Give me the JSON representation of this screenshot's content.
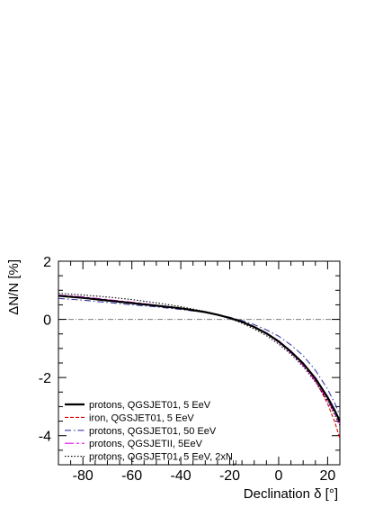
{
  "chart_data": {
    "type": "line",
    "title": "",
    "xlabel": "Declination δ [°]",
    "ylabel": "ΔN/N [%]",
    "xlim": [
      -90,
      25
    ],
    "ylim": [
      -5,
      2
    ],
    "x_ticks": [
      -80,
      -60,
      -40,
      -20,
      0,
      20
    ],
    "x_tick_labels": [
      "-80",
      "-60",
      "-40",
      "-20",
      "0",
      "20"
    ],
    "y_ticks": [
      -4,
      -2,
      0,
      2
    ],
    "y_tick_labels": [
      "-4",
      "-2",
      "0",
      "2"
    ],
    "grid": false,
    "legend_position": "bottom-left",
    "reference_line": {
      "y": 0,
      "color": "#7f7f7f",
      "style": "dash-dot"
    },
    "series": [
      {
        "name": "protons, QGSJET01, 5 EeV",
        "color": "#000000",
        "style": "solid",
        "width": "thick",
        "x": [
          -90,
          -80,
          -70,
          -60,
          -50,
          -40,
          -30,
          -25,
          -20,
          -15,
          -10,
          -5,
          0,
          5,
          10,
          15,
          20,
          23,
          25
        ],
        "y": [
          0.81,
          0.74,
          0.65,
          0.56,
          0.47,
          0.38,
          0.25,
          0.16,
          0.05,
          -0.08,
          -0.26,
          -0.48,
          -0.76,
          -1.11,
          -1.52,
          -2.03,
          -2.68,
          -3.15,
          -3.5
        ]
      },
      {
        "name": "iron, QGSJET01, 5 EeV",
        "color": "#dd0000",
        "style": "dashed",
        "width": "thin",
        "x": [
          -90,
          -80,
          -70,
          -60,
          -50,
          -40,
          -30,
          -25,
          -20,
          -15,
          -10,
          -5,
          0,
          5,
          10,
          15,
          20,
          23,
          25
        ],
        "y": [
          0.8,
          0.73,
          0.64,
          0.55,
          0.47,
          0.38,
          0.25,
          0.16,
          0.05,
          -0.08,
          -0.25,
          -0.47,
          -0.74,
          -1.09,
          -1.52,
          -2.1,
          -2.9,
          -3.55,
          -4.1
        ]
      },
      {
        "name": "protons, QGSJET01, 50 EeV",
        "color": "#3a3aa8",
        "style": "dash-dot",
        "width": "thin",
        "x": [
          -90,
          -80,
          -70,
          -60,
          -50,
          -40,
          -30,
          -25,
          -20,
          -15,
          -10,
          -5,
          0,
          5,
          10,
          15,
          20,
          23,
          25
        ],
        "y": [
          0.72,
          0.66,
          0.58,
          0.5,
          0.43,
          0.34,
          0.24,
          0.16,
          0.07,
          -0.04,
          -0.18,
          -0.36,
          -0.58,
          -0.88,
          -1.25,
          -1.75,
          -2.4,
          -2.9,
          -3.3
        ]
      },
      {
        "name": "protons, QGSJETII, 5EeV",
        "color": "#ee00ee",
        "style": "long-dash-dot",
        "width": "thin",
        "x": [
          -90,
          -80,
          -70,
          -60,
          -50,
          -40,
          -30,
          -25,
          -20,
          -15,
          -10,
          -5,
          0,
          5,
          10,
          15,
          20,
          23,
          25
        ],
        "y": [
          0.84,
          0.77,
          0.68,
          0.59,
          0.49,
          0.39,
          0.25,
          0.16,
          0.04,
          -0.1,
          -0.28,
          -0.5,
          -0.79,
          -1.15,
          -1.58,
          -2.12,
          -2.78,
          -3.25,
          -3.6
        ]
      },
      {
        "name": "protons, QGSJET01, 5 EeV, 2xN",
        "name_subscript": "μ",
        "color": "#000000",
        "style": "dotted",
        "width": "thin",
        "x": [
          -90,
          -80,
          -70,
          -60,
          -50,
          -40,
          -30,
          -25,
          -20,
          -15,
          -10,
          -5,
          0,
          5,
          10,
          15,
          20,
          23,
          25
        ],
        "y": [
          0.9,
          0.84,
          0.77,
          0.68,
          0.57,
          0.44,
          0.27,
          0.16,
          0.03,
          -0.13,
          -0.33,
          -0.56,
          -0.85,
          -1.2,
          -1.62,
          -2.15,
          -2.8,
          -3.3,
          -3.65
        ]
      }
    ]
  }
}
